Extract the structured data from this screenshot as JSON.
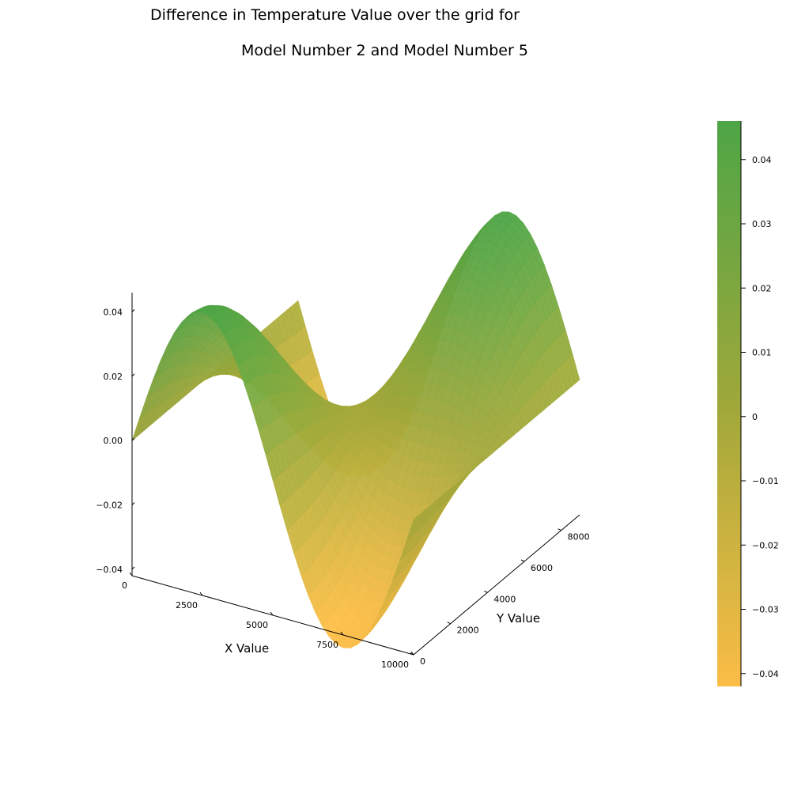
{
  "chart_data": {
    "type": "surface",
    "title": [
      "Difference in Temperature Value over the grid for",
      "Model Number 2 and Model Number 5"
    ],
    "xlabel": "X Value",
    "ylabel": "Y Value",
    "zlabel": "",
    "x_range": [
      0,
      10000
    ],
    "y_range": [
      0,
      9000
    ],
    "z_range": [
      -0.042,
      0.046
    ],
    "x_ticks": [
      {
        "value": 0,
        "label": "0"
      },
      {
        "value": 2500,
        "label": "2500"
      },
      {
        "value": 5000,
        "label": "5000"
      },
      {
        "value": 7500,
        "label": "7500"
      },
      {
        "value": 10000,
        "label": "10000"
      }
    ],
    "y_ticks": [
      {
        "value": 0,
        "label": "0"
      },
      {
        "value": 2000,
        "label": "2000"
      },
      {
        "value": 4000,
        "label": "4000"
      },
      {
        "value": 6000,
        "label": "6000"
      },
      {
        "value": 8000,
        "label": "8000"
      }
    ],
    "z_ticks": [
      {
        "value": -0.04,
        "label": "−0.04"
      },
      {
        "value": -0.02,
        "label": "−0.02"
      },
      {
        "value": 0,
        "label": "0.00"
      },
      {
        "value": 0.02,
        "label": "0.02"
      },
      {
        "value": 0.04,
        "label": "0.04"
      }
    ],
    "colorbar": {
      "range": [
        -0.042,
        0.046
      ],
      "ticks": [
        {
          "value": 0.04,
          "label": "0.04"
        },
        {
          "value": 0.03,
          "label": "0.03"
        },
        {
          "value": 0.02,
          "label": "0.02"
        },
        {
          "value": 0.01,
          "label": "0.01"
        },
        {
          "value": 0,
          "label": "0"
        },
        {
          "value": -0.01,
          "label": "−0.01"
        },
        {
          "value": -0.02,
          "label": "−0.02"
        },
        {
          "value": -0.03,
          "label": "−0.03"
        },
        {
          "value": -0.04,
          "label": "−0.04"
        }
      ],
      "colors": [
        "#fbbd46",
        "#9fa83a",
        "#4ea546"
      ]
    },
    "grid": false,
    "surface": {
      "function": "peak * sin(2*pi*x/10000) * cos(pi*y/9000)",
      "peak": 0.046
    }
  }
}
